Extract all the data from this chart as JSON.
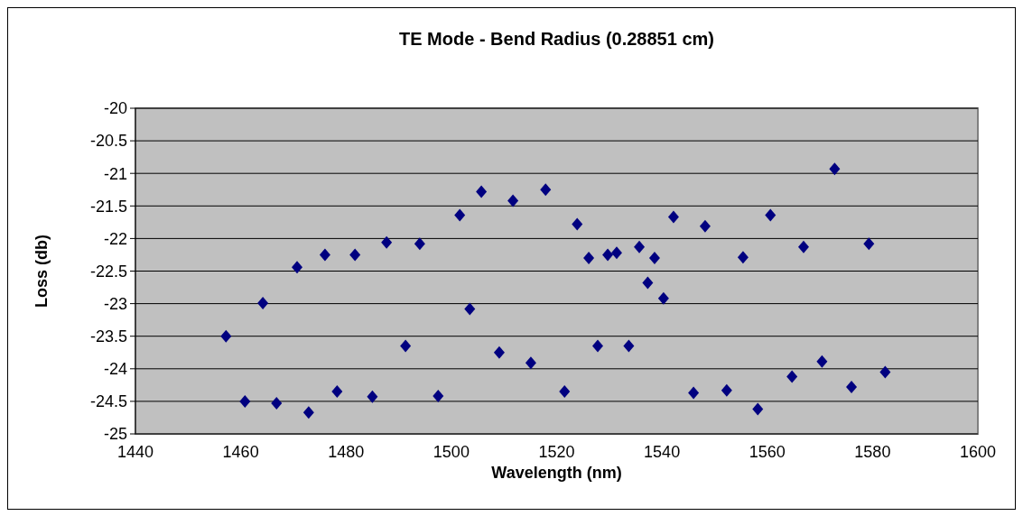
{
  "chart_data": {
    "type": "scatter",
    "title": "TE Mode - Bend Radius (0.28851 cm)",
    "xlabel": "Wavelength (nm)",
    "ylabel": "Loss (db)",
    "xlim": [
      1440,
      1600
    ],
    "xticks": [
      1440,
      1460,
      1480,
      1500,
      1520,
      1540,
      1560,
      1580,
      1600
    ],
    "ylim": [
      -25,
      -20
    ],
    "yticks": [
      -25,
      -24.5,
      -24,
      -23.5,
      -23,
      -22.5,
      -22,
      -21.5,
      -21,
      -20.5,
      -20
    ],
    "grid": "y",
    "marker": "diamond",
    "series": [
      {
        "color": "#000080",
        "x": [
          1457.2,
          1460.8,
          1464.2,
          1466.8,
          1470.7,
          1472.9,
          1476.0,
          1478.3,
          1481.7,
          1485.0,
          1487.7,
          1491.3,
          1494.0,
          1497.5,
          1501.6,
          1503.5,
          1505.7,
          1509.1,
          1511.7,
          1515.1,
          1517.9,
          1521.5,
          1523.9,
          1526.1,
          1527.8,
          1529.7,
          1531.4,
          1533.7,
          1535.7,
          1537.3,
          1538.6,
          1540.3,
          1542.2,
          1546.0,
          1548.2,
          1552.3,
          1555.4,
          1558.2,
          1560.6,
          1564.7,
          1566.9,
          1570.4,
          1572.8,
          1576.0,
          1579.3,
          1582.4
        ],
        "values": [
          -23.5,
          -24.5,
          -22.99,
          -24.53,
          -22.44,
          -24.67,
          -22.25,
          -24.35,
          -22.25,
          -24.43,
          -22.06,
          -23.65,
          -22.08,
          -24.42,
          -21.64,
          -23.08,
          -21.28,
          -23.75,
          -21.42,
          -23.91,
          -21.25,
          -24.35,
          -21.78,
          -22.3,
          -23.65,
          -22.25,
          -22.22,
          -23.65,
          -22.13,
          -22.68,
          -22.3,
          -22.92,
          -21.67,
          -24.37,
          -21.81,
          -24.33,
          -22.29,
          -24.62,
          -21.64,
          -24.12,
          -22.13,
          -23.89,
          -20.93,
          -24.28,
          -22.08,
          -24.05
        ]
      }
    ]
  }
}
